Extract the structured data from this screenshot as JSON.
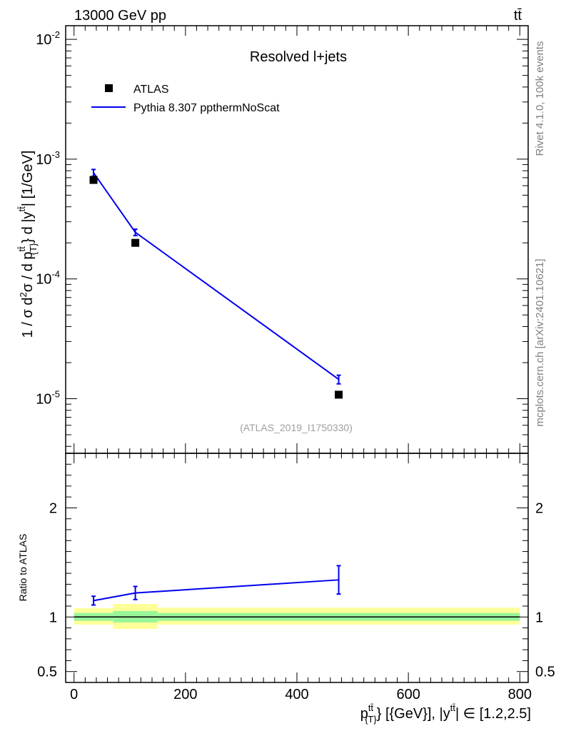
{
  "header": {
    "energy_label": "13000 GeV pp",
    "process_label": "tt̄"
  },
  "side_labels": {
    "rivet": "Rivet 4.1.0,  100k events",
    "mcplots": "mcplots.cern.ch [arXiv:2401.10621]"
  },
  "colors": {
    "mc": "#0000ee",
    "data": "#000000",
    "band_inner": "#99f599",
    "band_outer": "#ffff99"
  },
  "chart_data": [
    {
      "type": "scatter",
      "panel": "main",
      "title": "Resolved l+jets",
      "ylabel": "1 / σ d²σ / d p_T^{tt̄} d |y^{tt̄}| [1/GeV]",
      "yscale": "log",
      "ylim": [
        3.5e-06,
        0.013
      ],
      "xlim": [
        -15,
        815
      ],
      "yticks": [
        {
          "value": 1e-05,
          "base": "10",
          "exp": "-5"
        },
        {
          "value": 0.0001,
          "base": "10",
          "exp": "-4"
        },
        {
          "value": 0.001,
          "base": "10",
          "exp": "-3"
        },
        {
          "value": 0.01,
          "base": "10",
          "exp": "-2"
        }
      ],
      "watermark": "(ATLAS_2019_I1750330)",
      "legend": {
        "position": "top-left",
        "entries": [
          {
            "label": "ATLAS",
            "kind": "marker"
          },
          {
            "label": "Pythia 8.307 ppthermNoScat",
            "kind": "line"
          }
        ]
      },
      "series": [
        {
          "name": "ATLAS",
          "style": "markers",
          "points": [
            {
              "x": 35,
              "y": 0.00067
            },
            {
              "x": 110,
              "y": 0.0002
            },
            {
              "x": 475,
              "y": 1.08e-05
            }
          ]
        },
        {
          "name": "Pythia 8.307 ppthermNoScat",
          "style": "line",
          "points": [
            {
              "x": 35,
              "y": 0.00077,
              "err": 5e-05
            },
            {
              "x": 110,
              "y": 0.000245,
              "err": 1.5e-05
            },
            {
              "x": 475,
              "y": 1.45e-05,
              "err": 1.2e-06
            }
          ]
        }
      ]
    },
    {
      "type": "line",
      "panel": "ratio",
      "ylabel": "Ratio to ATLAS",
      "xlabel": "p_T^{tt̄} [{GeV}], |y^{tt̄}| ∈ [1.2,2.5]",
      "ylim": [
        0.4,
        2.5
      ],
      "xlim": [
        -15,
        815
      ],
      "yticks": [
        {
          "value": 0.5,
          "label": "0.5"
        },
        {
          "value": 1,
          "label": "1"
        },
        {
          "value": 2,
          "label": "2"
        }
      ],
      "xticks": [
        {
          "value": 0,
          "label": "0"
        },
        {
          "value": 200,
          "label": "200"
        },
        {
          "value": 400,
          "label": "400"
        },
        {
          "value": 600,
          "label": "600"
        },
        {
          "value": 800,
          "label": "800"
        }
      ],
      "bands": [
        {
          "x_low": 0,
          "x_high": 70,
          "inner_low": 0.965,
          "inner_high": 1.037,
          "outer_low": 0.93,
          "outer_high": 1.08
        },
        {
          "x_low": 70,
          "x_high": 150,
          "inner_low": 0.95,
          "inner_high": 1.055,
          "outer_low": 0.89,
          "outer_high": 1.12
        },
        {
          "x_low": 150,
          "x_high": 800,
          "inner_low": 0.965,
          "inner_high": 1.037,
          "outer_low": 0.93,
          "outer_high": 1.085
        }
      ],
      "reference_line": 1,
      "series": [
        {
          "name": "Pythia 8.307 ppthermNoScat",
          "points": [
            {
              "x": 35,
              "y": 1.15,
              "err": 0.04
            },
            {
              "x": 110,
              "y": 1.22,
              "err": 0.06
            },
            {
              "x": 475,
              "y": 1.34,
              "err": 0.13
            }
          ]
        }
      ]
    }
  ]
}
